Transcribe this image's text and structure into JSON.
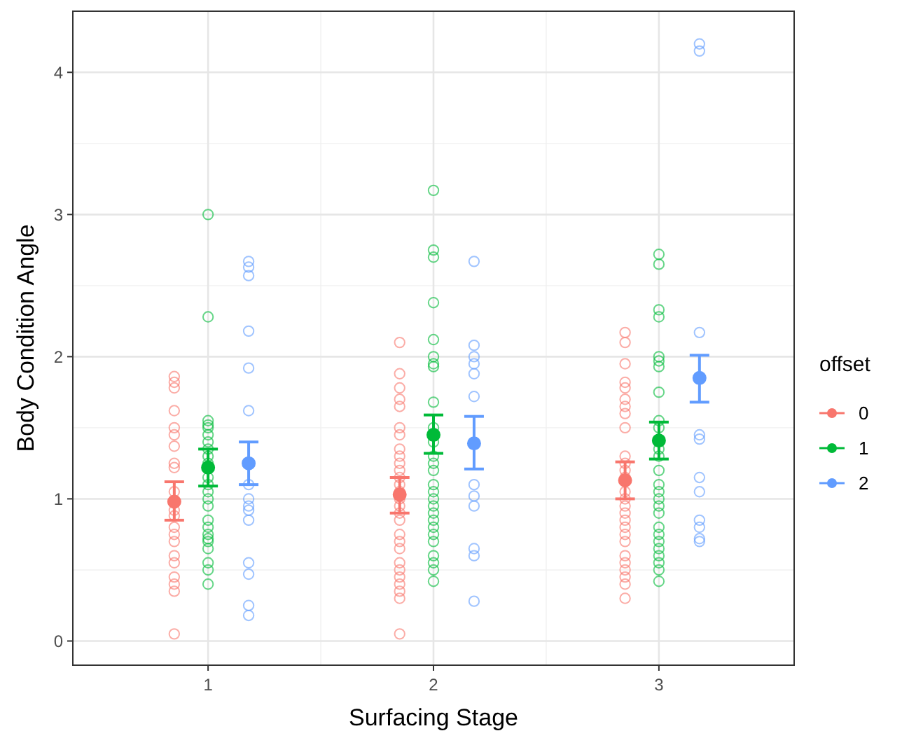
{
  "chart_data": {
    "type": "scatter",
    "xlabel": "Surfacing Stage",
    "ylabel": "Body Condition Angle",
    "legend_title": "offset",
    "legend": "right",
    "grid": true,
    "marker": "circle",
    "xlim": [
      0.4,
      3.6
    ],
    "xticks": [
      1,
      2,
      3
    ],
    "ylim": [
      -0.17,
      4.43
    ],
    "yticks": [
      0,
      1,
      2,
      3,
      4
    ],
    "series": [
      {
        "name": "0",
        "color": "#f8766d",
        "x": [
          0.85,
          0.85,
          0.85,
          0.85,
          0.85,
          0.85,
          0.85,
          0.85,
          0.85,
          0.85,
          0.85,
          0.85,
          0.85,
          0.85,
          0.85,
          0.85,
          0.85,
          0.85,
          0.85,
          0.85,
          0.85,
          1.85,
          1.85,
          1.85,
          1.85,
          1.85,
          1.85,
          1.85,
          1.85,
          1.85,
          1.85,
          1.85,
          1.85,
          1.85,
          1.85,
          1.85,
          1.85,
          1.85,
          1.85,
          1.85,
          1.85,
          1.85,
          1.85,
          1.85,
          1.85,
          1.85,
          1.85,
          1.85,
          1.85,
          2.85,
          2.85,
          2.85,
          2.85,
          2.85,
          2.85,
          2.85,
          2.85,
          2.85,
          2.85,
          2.85,
          2.85,
          2.85,
          2.85,
          2.85,
          2.85,
          2.85,
          2.85,
          2.85,
          2.85,
          2.85,
          2.85,
          2.85,
          2.85,
          2.85,
          2.85,
          2.85
        ],
        "values": [
          1.86,
          1.82,
          1.78,
          1.62,
          1.5,
          1.45,
          1.37,
          1.25,
          1.22,
          1.05,
          0.92,
          0.88,
          0.8,
          0.75,
          0.7,
          0.6,
          0.55,
          0.45,
          0.4,
          0.35,
          0.05,
          2.1,
          1.88,
          1.78,
          1.7,
          1.65,
          1.5,
          1.45,
          1.35,
          1.3,
          1.25,
          1.2,
          1.15,
          1.1,
          1.05,
          1.0,
          0.95,
          0.9,
          0.85,
          0.75,
          0.7,
          0.65,
          0.55,
          0.5,
          0.45,
          0.4,
          0.35,
          0.3,
          0.05,
          2.17,
          2.1,
          1.95,
          1.82,
          1.78,
          1.7,
          1.65,
          1.6,
          1.5,
          1.3,
          1.25,
          1.2,
          1.15,
          1.05,
          1.0,
          0.95,
          0.9,
          0.85,
          0.8,
          0.75,
          0.7,
          0.6,
          0.55,
          0.5,
          0.45,
          0.4,
          0.3
        ]
      },
      {
        "name": "1",
        "color": "#00ba38",
        "x": [
          1,
          1,
          1,
          1,
          1,
          1,
          1,
          1,
          1,
          1,
          1,
          1,
          1,
          1,
          1,
          1,
          1,
          1,
          1,
          1,
          1,
          1,
          1,
          1,
          2,
          2,
          2,
          2,
          2,
          2,
          2,
          2,
          2,
          2,
          2,
          2,
          2,
          2,
          2,
          2,
          2,
          2,
          2,
          2,
          2,
          2,
          2,
          2,
          2,
          2,
          2,
          3,
          3,
          3,
          3,
          3,
          3,
          3,
          3,
          3,
          3,
          3,
          3,
          3,
          3,
          3,
          3,
          3,
          3,
          3,
          3,
          3,
          3,
          3,
          3,
          3,
          3
        ],
        "values": [
          3.0,
          2.28,
          1.55,
          1.52,
          1.5,
          1.45,
          1.4,
          1.35,
          1.3,
          1.25,
          1.15,
          1.1,
          1.05,
          1.0,
          0.95,
          0.85,
          0.8,
          0.75,
          0.72,
          0.7,
          0.65,
          0.55,
          0.5,
          0.4,
          3.17,
          2.75,
          2.7,
          2.38,
          2.12,
          2.0,
          1.95,
          1.93,
          1.68,
          1.5,
          1.4,
          1.3,
          1.25,
          1.2,
          1.1,
          1.05,
          1.0,
          0.95,
          0.9,
          0.85,
          0.8,
          0.75,
          0.7,
          0.6,
          0.55,
          0.5,
          0.42,
          2.72,
          2.65,
          2.33,
          2.28,
          2.0,
          1.97,
          1.93,
          1.75,
          1.55,
          1.5,
          1.35,
          1.3,
          1.2,
          1.1,
          1.05,
          1.0,
          0.95,
          0.9,
          0.8,
          0.75,
          0.7,
          0.65,
          0.6,
          0.55,
          0.5,
          0.42
        ]
      },
      {
        "name": "2",
        "color": "#619cff",
        "x": [
          1.18,
          1.18,
          1.18,
          1.18,
          1.18,
          1.18,
          1.18,
          1.18,
          1.18,
          1.18,
          1.18,
          1.18,
          1.18,
          1.18,
          1.18,
          2.18,
          2.18,
          2.18,
          2.18,
          2.18,
          2.18,
          2.18,
          2.18,
          2.18,
          2.18,
          2.18,
          2.18,
          3.18,
          3.18,
          3.18,
          3.18,
          3.18,
          3.18,
          3.18,
          3.18,
          3.18,
          3.18,
          3.18
        ],
        "values": [
          2.67,
          2.63,
          2.57,
          2.18,
          1.92,
          1.62,
          1.1,
          1.0,
          0.95,
          0.92,
          0.85,
          0.55,
          0.47,
          0.25,
          0.18,
          2.67,
          2.08,
          2.0,
          1.95,
          1.88,
          1.72,
          1.1,
          1.02,
          0.95,
          0.65,
          0.6,
          0.28,
          4.2,
          4.15,
          2.17,
          1.45,
          1.42,
          1.15,
          1.05,
          0.85,
          0.8,
          0.72,
          0.7
        ]
      },
      {
        "color": "#f8766d",
        "x": [
          0.85,
          1.85,
          2.85
        ],
        "values": [
          0.98,
          1.03,
          1.13
        ],
        "errors": [
          [
            0.85,
            1.12
          ],
          [
            0.9,
            1.15
          ],
          [
            1.0,
            1.26
          ]
        ]
      },
      {
        "color": "#00ba38",
        "x": [
          1,
          2,
          3
        ],
        "values": [
          1.22,
          1.45,
          1.41
        ],
        "errors": [
          [
            1.09,
            1.35
          ],
          [
            1.32,
            1.59
          ],
          [
            1.28,
            1.54
          ]
        ]
      },
      {
        "color": "#619cff",
        "x": [
          1.18,
          2.18,
          3.18
        ],
        "values": [
          1.25,
          1.39,
          1.85
        ],
        "errors": [
          [
            1.1,
            1.4
          ],
          [
            1.21,
            1.58
          ],
          [
            1.68,
            2.01
          ]
        ]
      }
    ]
  }
}
